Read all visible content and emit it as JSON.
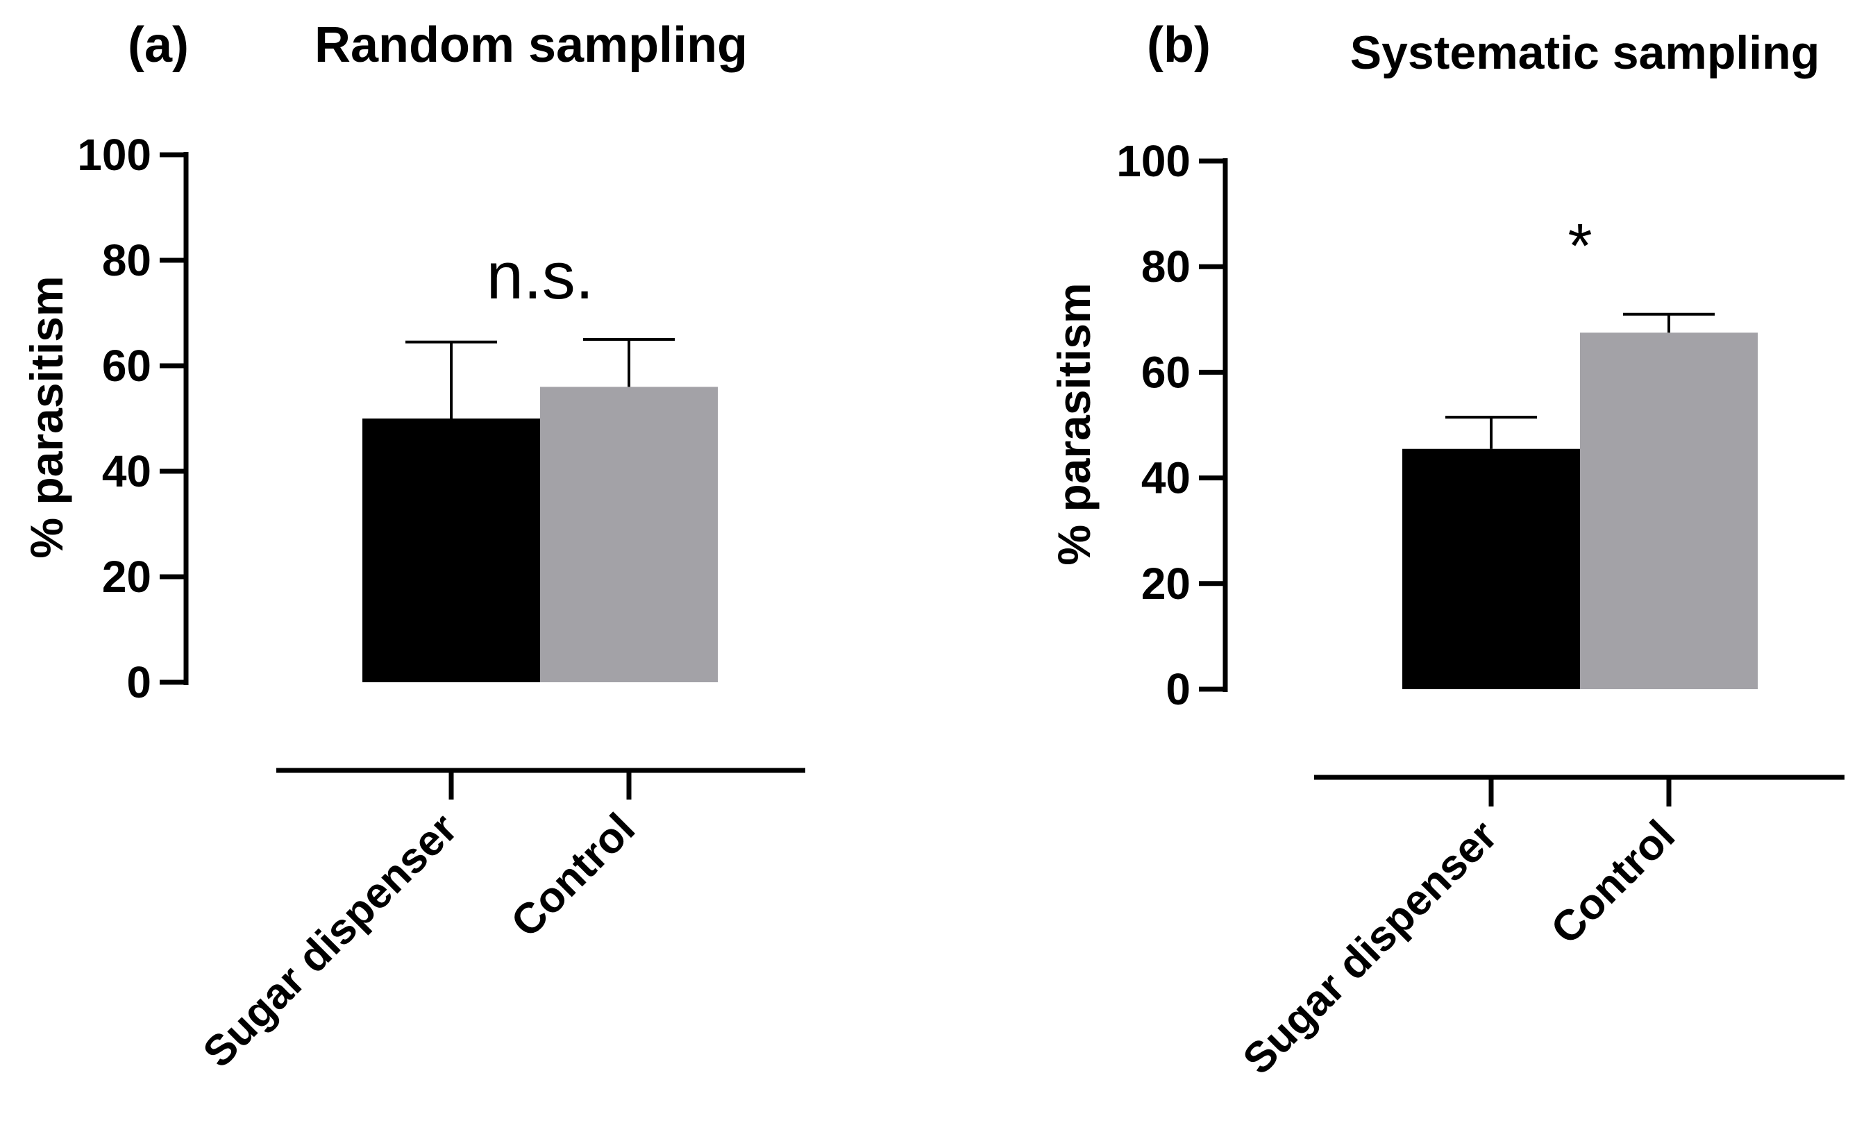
{
  "chart_data": [
    {
      "type": "bar",
      "panel_label": "(a)",
      "title": "Random sampling",
      "ylabel": "% parasitism",
      "xlabel": "",
      "ylim": [
        0,
        100
      ],
      "yticks": [
        0,
        20,
        40,
        60,
        80,
        100
      ],
      "categories": [
        "Sugar dispenser",
        "Control"
      ],
      "values": [
        50,
        56
      ],
      "errors": [
        14.5,
        9
      ],
      "colors": [
        "#000000",
        "#a3a2a7"
      ],
      "annotation": "n.s."
    },
    {
      "type": "bar",
      "panel_label": "(b)",
      "title": "Systematic sampling",
      "ylabel": "% parasitism",
      "xlabel": "",
      "ylim": [
        0,
        100
      ],
      "yticks": [
        0,
        20,
        40,
        60,
        80,
        100
      ],
      "categories": [
        "Sugar dispenser",
        "Control"
      ],
      "values": [
        45.5,
        67.5
      ],
      "errors": [
        6,
        3.5
      ],
      "colors": [
        "#000000",
        "#a3a2a7"
      ],
      "annotation": "*"
    }
  ]
}
